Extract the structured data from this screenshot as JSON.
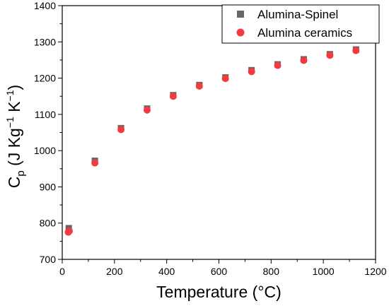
{
  "chart_data": {
    "type": "scatter",
    "title": "",
    "xlabel": "Temperature (°C)",
    "ylabel": {
      "base": "C",
      "sub": "p",
      "open": " (J Kg",
      "sup1": "−1",
      "mid": " K",
      "sup2": "−1",
      "close": ")"
    },
    "xlim": [
      0,
      1200
    ],
    "ylim": [
      700,
      1400
    ],
    "xticks": [
      0,
      200,
      400,
      600,
      800,
      1000,
      1200
    ],
    "yticks": [
      700,
      800,
      900,
      1000,
      1100,
      1200,
      1300,
      1400
    ],
    "grid": false,
    "legend_position": "top-right",
    "series": [
      {
        "name": "Alumina-Spinel",
        "marker": "square",
        "color": "#666666",
        "x": [
          25,
          125,
          225,
          325,
          425,
          525,
          625,
          725,
          825,
          925,
          1025,
          1125
        ],
        "y": [
          786,
          972,
          1062,
          1116,
          1153,
          1181,
          1202,
          1222,
          1238,
          1252,
          1266,
          1279
        ]
      },
      {
        "name": "Alumina ceramics",
        "marker": "circle",
        "color": "#f33a3f",
        "x": [
          23,
          27,
          125,
          225,
          325,
          425,
          525,
          625,
          725,
          825,
          925,
          1025,
          1125
        ],
        "y": [
          775,
          778,
          966,
          1058,
          1112,
          1150,
          1178,
          1199,
          1218,
          1235,
          1249,
          1263,
          1276
        ]
      }
    ]
  }
}
